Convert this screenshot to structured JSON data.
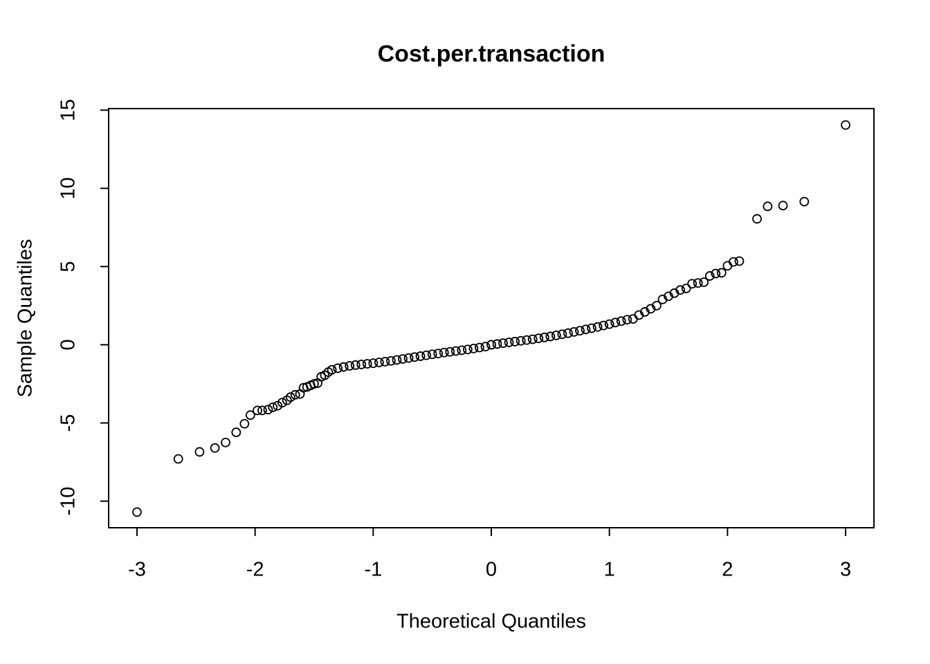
{
  "chart_data": {
    "type": "scatter",
    "title": "Cost.per.transaction",
    "x_label": "Theoretical Quantiles",
    "y_label": "Sample Quantiles",
    "color": "#000000",
    "xlim": [
      -3.24,
      3.24
    ],
    "ylim": [
      -11.7,
      15.1
    ],
    "xticks": [
      -3,
      -2,
      -1,
      0,
      1,
      2,
      3
    ],
    "yticks": [
      -10,
      -5,
      0,
      5,
      10,
      15
    ],
    "x": [
      -3.0,
      -2.65,
      -2.47,
      -2.34,
      -2.25,
      -2.16,
      -2.09,
      -2.04,
      -1.98,
      -1.94,
      -1.89,
      -1.85,
      -1.81,
      -1.77,
      -1.73,
      -1.7,
      -1.66,
      -1.62,
      -1.59,
      -1.56,
      -1.53,
      -1.5,
      -1.47,
      -1.44,
      -1.41,
      -1.38,
      -1.35,
      -1.3,
      -1.25,
      -1.2,
      -1.15,
      -1.1,
      -1.05,
      -1.0,
      -0.95,
      -0.9,
      -0.85,
      -0.8,
      -0.75,
      -0.7,
      -0.65,
      -0.6,
      -0.55,
      -0.5,
      -0.45,
      -0.4,
      -0.35,
      -0.3,
      -0.25,
      -0.2,
      -0.15,
      -0.1,
      -0.05,
      0.0,
      0.05,
      0.1,
      0.15,
      0.2,
      0.25,
      0.3,
      0.35,
      0.4,
      0.45,
      0.5,
      0.55,
      0.6,
      0.65,
      0.7,
      0.75,
      0.8,
      0.85,
      0.9,
      0.95,
      1.0,
      1.05,
      1.1,
      1.15,
      1.2,
      1.25,
      1.3,
      1.35,
      1.4,
      1.45,
      1.5,
      1.55,
      1.6,
      1.65,
      1.7,
      1.75,
      1.8,
      1.85,
      1.9,
      1.95,
      2.0,
      2.05,
      2.1,
      2.25,
      2.34,
      2.47,
      2.65,
      3.0
    ],
    "values": [
      -10.7,
      -7.3,
      -6.85,
      -6.6,
      -6.25,
      -5.6,
      -5.05,
      -4.5,
      -4.2,
      -4.2,
      -4.15,
      -4.0,
      -3.9,
      -3.7,
      -3.55,
      -3.35,
      -3.2,
      -3.15,
      -2.75,
      -2.7,
      -2.6,
      -2.5,
      -2.45,
      -2.05,
      -1.95,
      -1.75,
      -1.6,
      -1.5,
      -1.42,
      -1.35,
      -1.3,
      -1.26,
      -1.22,
      -1.18,
      -1.13,
      -1.08,
      -1.03,
      -0.97,
      -0.91,
      -0.85,
      -0.79,
      -0.73,
      -0.67,
      -0.61,
      -0.56,
      -0.5,
      -0.45,
      -0.4,
      -0.35,
      -0.3,
      -0.24,
      -0.18,
      -0.12,
      0.0,
      0.05,
      0.1,
      0.15,
      0.2,
      0.25,
      0.3,
      0.35,
      0.41,
      0.47,
      0.53,
      0.6,
      0.67,
      0.74,
      0.82,
      0.9,
      0.98,
      1.06,
      1.14,
      1.23,
      1.32,
      1.42,
      1.51,
      1.6,
      1.65,
      1.9,
      2.1,
      2.3,
      2.5,
      2.9,
      3.1,
      3.3,
      3.5,
      3.6,
      3.9,
      3.95,
      4.0,
      4.4,
      4.55,
      4.6,
      5.05,
      5.3,
      5.35,
      8.05,
      8.85,
      8.9,
      9.15,
      14.05
    ]
  }
}
